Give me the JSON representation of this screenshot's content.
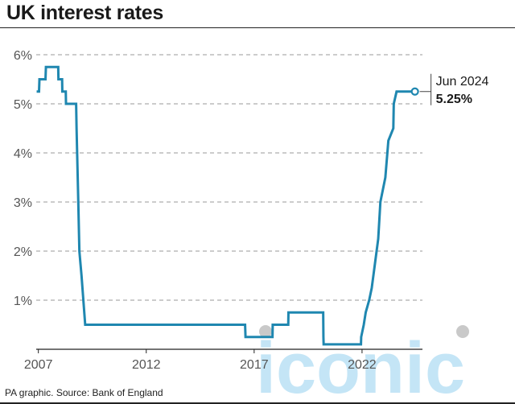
{
  "title": "UK interest rates",
  "source": "PA graphic. Source: Bank of England",
  "watermark": "iconic",
  "chart_data": {
    "type": "line",
    "title": "UK interest rates",
    "xlabel": "",
    "ylabel": "",
    "x_ticks": [
      "2007",
      "2012",
      "2017",
      "2022"
    ],
    "y_ticks": [
      "1%",
      "2%",
      "3%",
      "4%",
      "5%",
      "6%"
    ],
    "ylim": [
      0,
      6
    ],
    "xlim": [
      2006.9,
      2024.8
    ],
    "grid": "horizontal dashed",
    "line_color": "#1f87b0",
    "series": [
      {
        "values": [
          [
            2006.92,
            5.25
          ],
          [
            2007.03,
            5.25
          ],
          [
            2007.05,
            5.5
          ],
          [
            2007.33,
            5.5
          ],
          [
            2007.35,
            5.75
          ],
          [
            2007.92,
            5.75
          ],
          [
            2007.93,
            5.5
          ],
          [
            2008.1,
            5.5
          ],
          [
            2008.11,
            5.25
          ],
          [
            2008.27,
            5.25
          ],
          [
            2008.28,
            5.0
          ],
          [
            2008.75,
            5.0
          ],
          [
            2008.77,
            4.5
          ],
          [
            2008.85,
            3.0
          ],
          [
            2008.9,
            2.0
          ],
          [
            2009.0,
            1.5
          ],
          [
            2009.17,
            0.5
          ],
          [
            2016.58,
            0.5
          ],
          [
            2016.6,
            0.25
          ],
          [
            2017.85,
            0.25
          ],
          [
            2017.86,
            0.5
          ],
          [
            2018.58,
            0.5
          ],
          [
            2018.59,
            0.75
          ],
          [
            2020.2,
            0.75
          ],
          [
            2020.21,
            0.25
          ],
          [
            2020.22,
            0.1
          ],
          [
            2021.95,
            0.1
          ],
          [
            2021.96,
            0.25
          ],
          [
            2022.08,
            0.5
          ],
          [
            2022.17,
            0.75
          ],
          [
            2022.33,
            1.0
          ],
          [
            2022.45,
            1.25
          ],
          [
            2022.6,
            1.75
          ],
          [
            2022.75,
            2.25
          ],
          [
            2022.85,
            3.0
          ],
          [
            2023.08,
            3.5
          ],
          [
            2023.22,
            4.25
          ],
          [
            2023.45,
            4.5
          ],
          [
            2023.47,
            5.0
          ],
          [
            2023.6,
            5.25
          ],
          [
            2024.45,
            5.25
          ]
        ]
      }
    ],
    "annotation": {
      "label": "Jun 2024",
      "value": "5.25%",
      "x": 2024.45,
      "y": 5.25
    }
  }
}
